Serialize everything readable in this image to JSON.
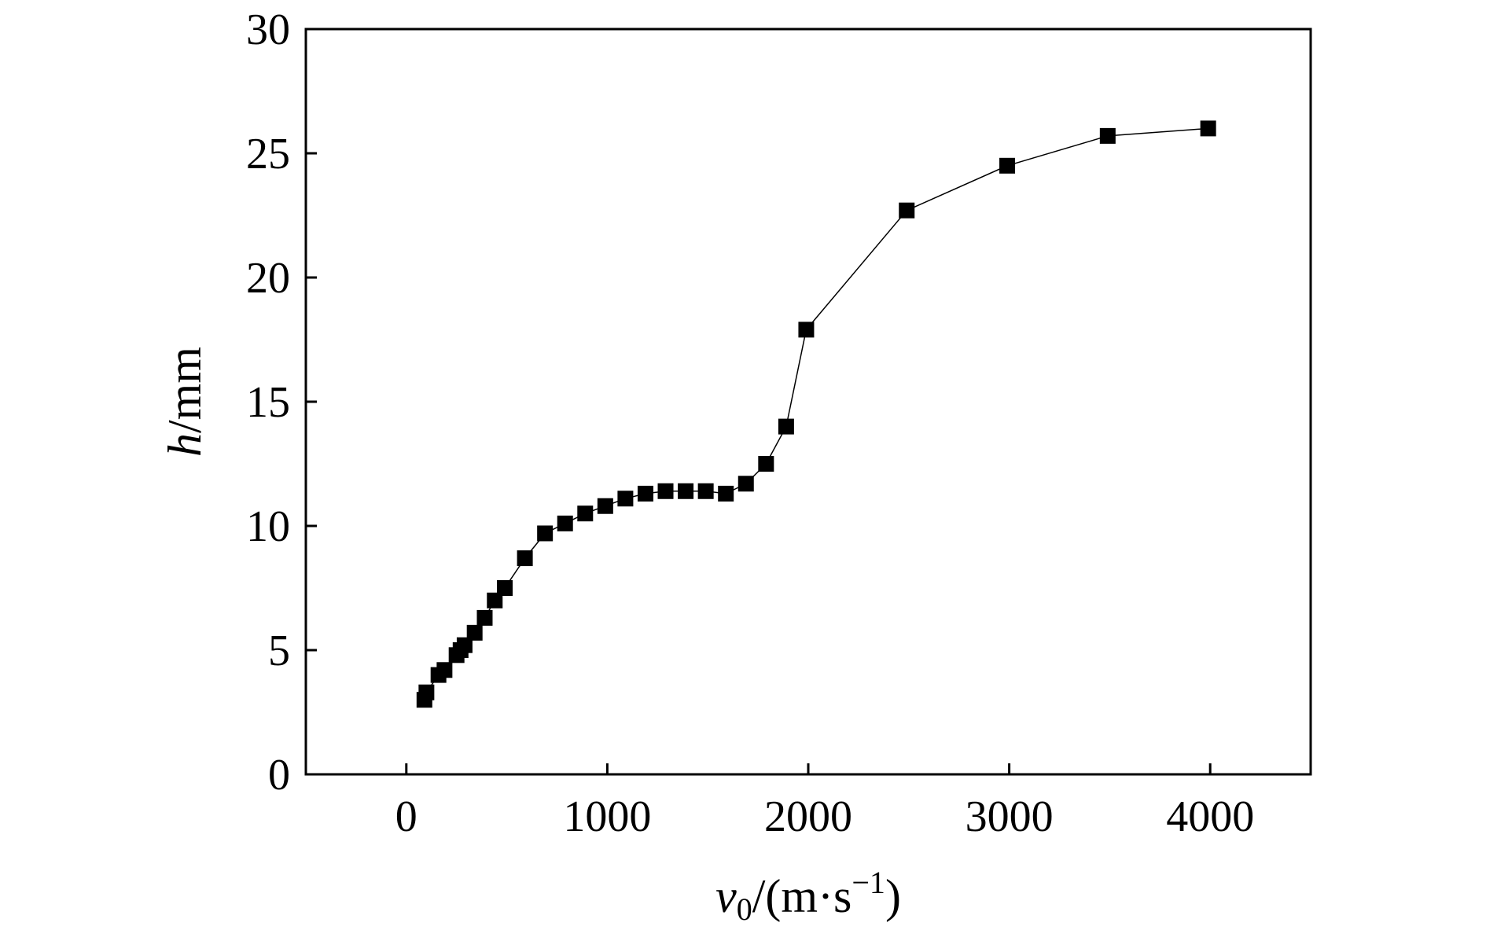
{
  "chart_data": {
    "type": "line",
    "title": "",
    "xlabel": {
      "var": "v",
      "sub": "0",
      "unit_pre": "/(m·s",
      "sup": "−1",
      "unit_post": ")"
    },
    "ylabel": {
      "var": "h",
      "unit": "/mm"
    },
    "xlim": [
      -500,
      4500
    ],
    "ylim": [
      0,
      30
    ],
    "xticks": [
      0,
      1000,
      2000,
      3000,
      4000
    ],
    "xtick_labels": [
      "0",
      "1000",
      "2000",
      "3000",
      "4000"
    ],
    "yticks": [
      0,
      5,
      10,
      15,
      20,
      25,
      30
    ],
    "ytick_labels": [
      "0",
      "5",
      "10",
      "15",
      "20",
      "25",
      "30"
    ],
    "grid": false,
    "series": [
      {
        "name": "h",
        "marker": "square",
        "color": "#000000",
        "x": [
          90,
          100,
          160,
          190,
          250,
          270,
          290,
          340,
          390,
          440,
          490,
          590,
          690,
          790,
          890,
          990,
          1090,
          1190,
          1290,
          1390,
          1490,
          1590,
          1690,
          1790,
          1890,
          1990,
          2490,
          2990,
          3490,
          3990
        ],
        "y": [
          3.0,
          3.3,
          4.0,
          4.2,
          4.8,
          5.0,
          5.2,
          5.7,
          6.3,
          7.0,
          7.5,
          8.7,
          9.7,
          10.1,
          10.5,
          10.8,
          11.1,
          11.3,
          11.4,
          11.4,
          11.4,
          11.3,
          11.7,
          12.5,
          14.0,
          17.9,
          22.7,
          24.5,
          25.7,
          26.0
        ]
      }
    ]
  }
}
